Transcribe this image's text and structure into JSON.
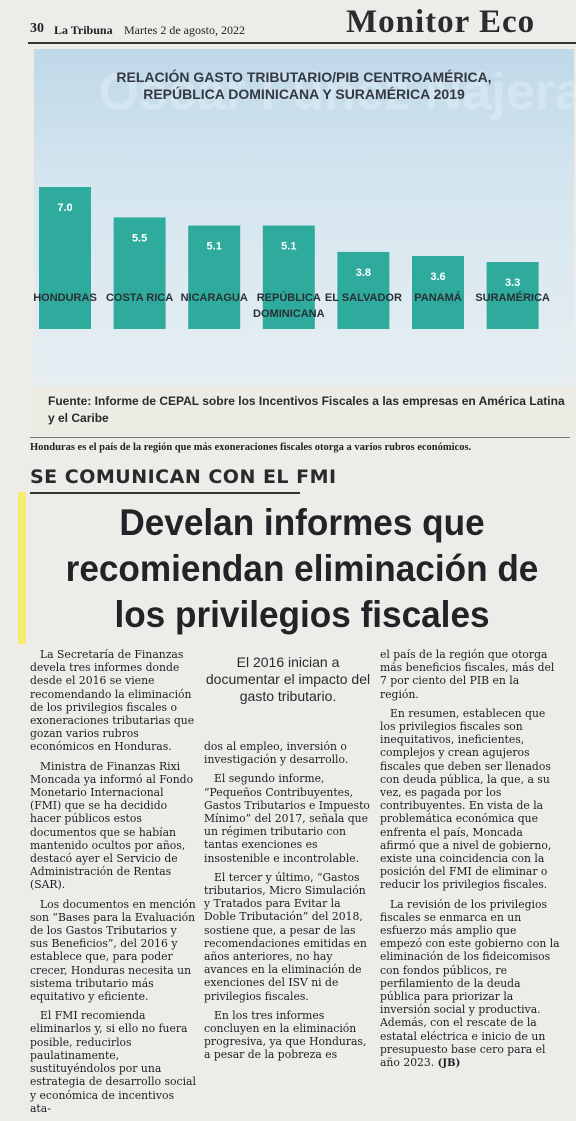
{
  "header": {
    "page_number": "30",
    "paper_name": "La Tribuna",
    "date": "Martes 2 de agosto, 2022",
    "section": "Monitor Eco"
  },
  "background_text": "Oscar Fúnez Nájera",
  "chart_data": {
    "type": "bar",
    "title": "RELACIÓN GASTO TRIBUTARIO/PIB CENTROAMÉRICA, REPÚBLICA DOMINICANA Y SURAMÉRICA 2019",
    "title_lines": [
      "RELACIÓN GASTO TRIBUTARIO/PIB CENTROAMÉRICA,",
      "REPÚBLICA DOMINICANA Y SURAMÉRICA 2019"
    ],
    "categories": [
      "HONDURAS",
      "COSTA RICA",
      "NICARAGUA",
      "REPÚBLICA DOMINICANA",
      "EL SALVADOR",
      "PANAMÁ",
      "SURAMÉRICA"
    ],
    "category_lines": [
      [
        "HONDURAS"
      ],
      [
        "COSTA RICA"
      ],
      [
        "NICARAGUA"
      ],
      [
        "REPÚBLICA",
        "DOMINICANA"
      ],
      [
        "EL SALVADOR"
      ],
      [
        "PANAMÁ"
      ],
      [
        "SURAMÉRICA"
      ]
    ],
    "values": [
      7.0,
      5.5,
      5.1,
      5.1,
      3.8,
      3.6,
      3.3
    ],
    "value_labels": [
      "7.0",
      "5.5",
      "5.1",
      "5.1",
      "3.8",
      "3.6",
      "3.3"
    ],
    "xlabel": "",
    "ylabel": "",
    "ylim": [
      0,
      7.0
    ],
    "bar_color": "#2eab9c",
    "value_label_color": "#ffffff",
    "grid": false
  },
  "source_note": "Fuente: Informe de CEPAL sobre los Incentivos Fiscales a las empresas en América Latina y el Caribe",
  "caption": "Honduras es el país de la región que más exoneraciones fiscales otorga a varios rubros económicos.",
  "article": {
    "kicker": "SE COMUNICAN CON EL FMI",
    "headline": "Develan informes que recomiendan eliminación de los privilegios fiscales",
    "pull_quote": "El 2016 inician a documentar el impacto del gasto tributario.",
    "col1": [
      "La Secretaría de Finanzas devela tres informes donde desde el 2016 se viene recomendando la eliminación de los privilegios fiscales o exoneraciones tributarias que gozan varios rubros económicos en Honduras.",
      "Ministra de Finanzas Rixi Moncada ya informó al Fondo Monetario Internacional (FMI) que se ha decidido hacer públicos estos documentos que se habían mantenido ocultos por años, destacó ayer el Servicio de Administración de Rentas (SAR).",
      "Los documentos en mención son “Bases para la Evaluación de los Gastos Tributarios y sus Beneficios”, del 2016 y establece que, para poder crecer, Honduras necesita un sistema tributario más equitativo y eficiente.",
      "El FMI recomienda eliminarlos y, si ello no fuera posible, reducirlos paulatinamente, sustituyéndolos por una estrategia de desarrollo social y económica de incentivos ata-"
    ],
    "col2": [
      "dos al empleo, inversión o investigación y desarrollo.",
      "El segundo informe, “Pequeños Contribuyentes, Gastos Tributarios e Impuesto Mínimo” del 2017, señala que un régimen tributario con tantas exenciones es insostenible e incontrolable.",
      "El tercer y último, “Gastos tributarios, Micro Simulación y Tratados para Evitar la Doble Tributación” del 2018, sostiene que, a pesar de las recomendaciones emitidas en años anteriores, no hay avances en la eliminación de exenciones del ISV ni de privilegios fiscales.",
      "En los tres informes concluyen en la eliminación progresiva, ya que Honduras, a pesar de la pobreza es"
    ],
    "col3": [
      "el país de la región que otorga más beneficios fiscales, más del 7 por ciento del PIB en la región.",
      "En resumen, establecen que los privilegios fiscales son inequitativos, ineficientes, complejos y crean agujeros fiscales que deben ser llenados con deuda pública, la que, a su vez, es pagada por los contribuyentes. En vista de la problemática económica que enfrenta el país, Moncada afirmó que a nivel de gobierno, existe una coincidencia con la posición del FMI de eliminar o reducir los privilegios fiscales.",
      "La revisión de los privilegios fiscales se enmarca en un esfuerzo más amplio que empezó con este gobierno con la eliminación de los fideicomisos con fondos públicos, re perfilamiento de la deuda pública para priorizar la inversión social y productiva. Además, con el rescate de la estatal eléctrica e inicio de un presupuesto base cero para el año 2023."
    ],
    "byline": "(JB)"
  }
}
